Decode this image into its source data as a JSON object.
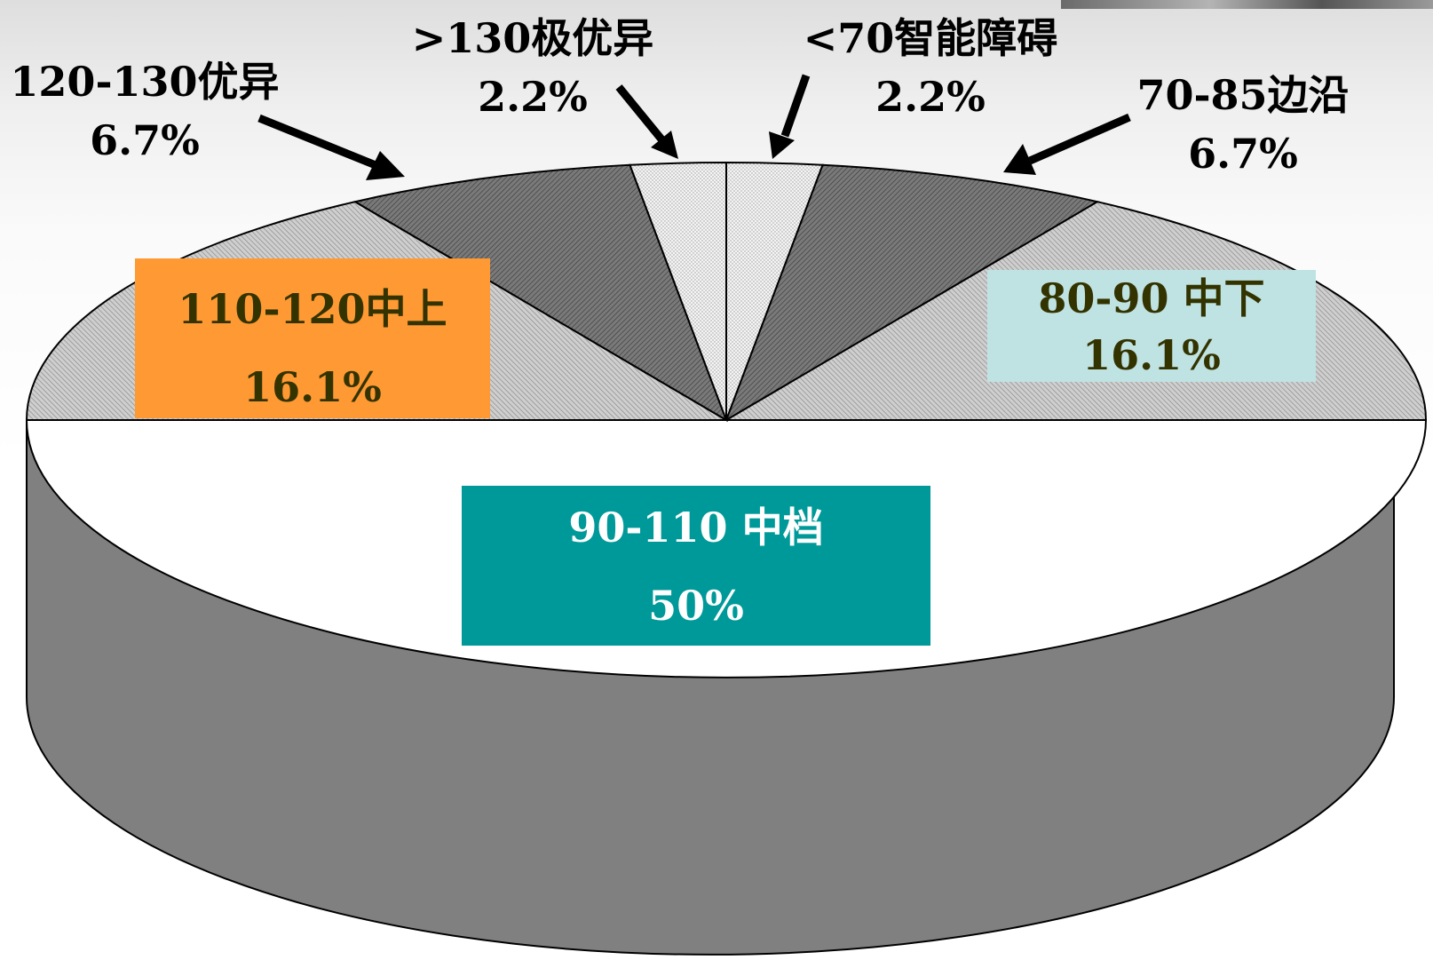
{
  "chart_data": {
    "type": "pie",
    "slices": [
      {
        "category": "<70智能障碍",
        "value": 2.2,
        "percent_label": "2.2%"
      },
      {
        "category": "70-85边沿",
        "value": 6.7,
        "percent_label": "6.7%"
      },
      {
        "category": "80-90 中下",
        "value": 16.1,
        "percent_label": "16.1%"
      },
      {
        "category": "90-110 中档",
        "value": 50,
        "percent_label": "50%"
      },
      {
        "category": "110-120中上",
        "value": 16.1,
        "percent_label": "16.1%"
      },
      {
        "category": "120-130优异",
        "value": 6.7,
        "percent_label": "6.7%"
      },
      {
        "category": ">130极优异",
        "value": 2.2,
        "percent_label": "2.2%"
      }
    ],
    "style": "3d-pie",
    "colors": {
      "dark_sector": "#808080",
      "light_sector": "#c4c4c4",
      "tiny_sector": "#efefef",
      "main_sector": "#ffffff",
      "side_wall": "#808080",
      "box_orange": "#ff9933",
      "box_lightblue": "#bfe2e2",
      "box_teal": "#009999",
      "box_text_dark": "#333300",
      "box_text_white": "#ffffff"
    }
  }
}
